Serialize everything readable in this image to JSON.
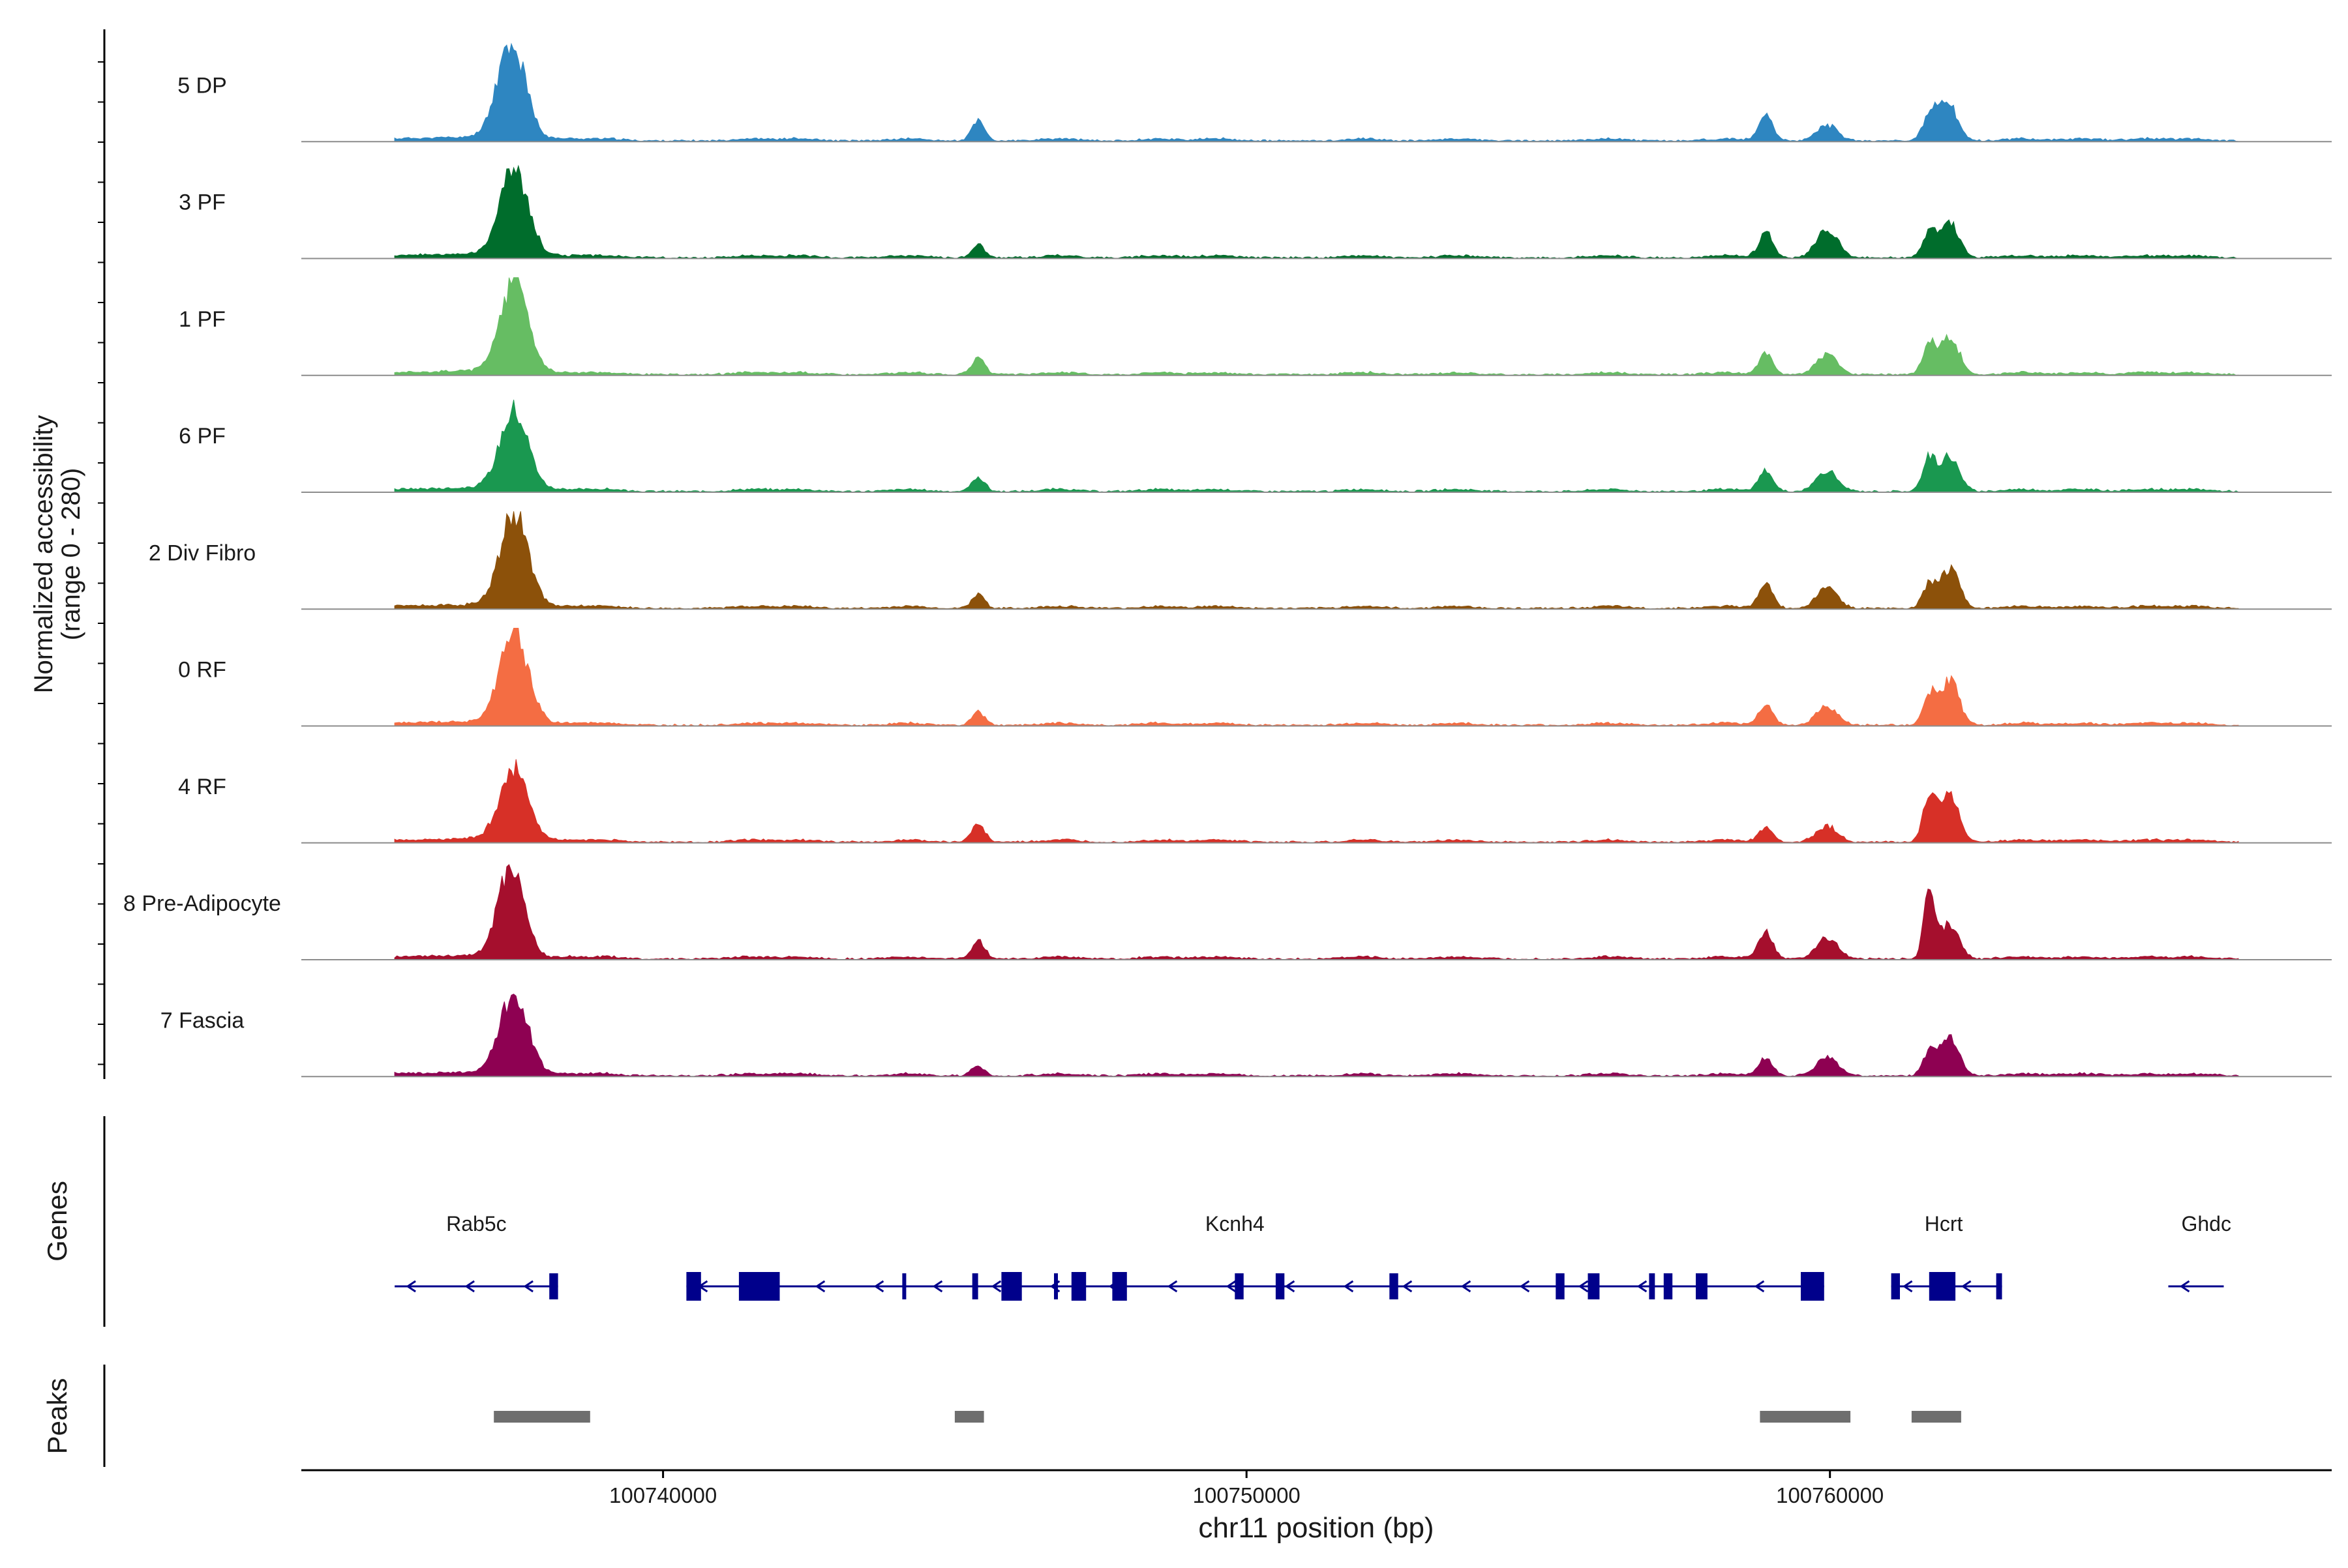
{
  "chart_data": {
    "type": "area",
    "title": "",
    "xlabel": "chr11 position (bp)",
    "ylabel": "Normalized accessibility",
    "ylabel_range": "(range 0 - 280)",
    "xlim": [
      100733800,
      100768600
    ],
    "ylim": [
      0,
      280
    ],
    "x_ticks": [
      {
        "value": 100740000,
        "label": "100740000"
      },
      {
        "value": 100750000,
        "label": "100750000"
      },
      {
        "value": 100760000,
        "label": "100760000"
      }
    ],
    "tracks": [
      {
        "name": "5 DP",
        "color": "#2e86c1",
        "peaks": [
          [
            100737400,
            280,
            240
          ],
          [
            100745400,
            55,
            110
          ],
          [
            100758900,
            70,
            120
          ],
          [
            100759950,
            45,
            180
          ],
          [
            100761700,
            65,
            110
          ],
          [
            100762000,
            125,
            160
          ]
        ]
      },
      {
        "name": "3 PF",
        "color": "#006d2c",
        "peaks": [
          [
            100737450,
            255,
            240
          ],
          [
            100745400,
            35,
            110
          ],
          [
            100758900,
            70,
            120
          ],
          [
            100759950,
            85,
            180
          ],
          [
            100761700,
            70,
            110
          ],
          [
            100762050,
            100,
            160
          ]
        ]
      },
      {
        "name": "1 PF",
        "color": "#66bd63",
        "peaks": [
          [
            100737450,
            265,
            240
          ],
          [
            100745400,
            50,
            110
          ],
          [
            100758900,
            60,
            120
          ],
          [
            100759950,
            55,
            180
          ],
          [
            100761700,
            80,
            110
          ],
          [
            100762050,
            110,
            160
          ]
        ]
      },
      {
        "name": "6 PF",
        "color": "#1a9850",
        "peaks": [
          [
            100737450,
            230,
            240
          ],
          [
            100745400,
            40,
            110
          ],
          [
            100758900,
            60,
            120
          ],
          [
            100759950,
            60,
            180
          ],
          [
            100761700,
            95,
            110
          ],
          [
            100762050,
            100,
            160
          ]
        ]
      },
      {
        "name": "2 Div Fibro",
        "color": "#8c510a",
        "peaks": [
          [
            100737450,
            270,
            240
          ],
          [
            100745400,
            40,
            110
          ],
          [
            100758900,
            75,
            120
          ],
          [
            100759950,
            60,
            180
          ],
          [
            100761700,
            65,
            110
          ],
          [
            100762050,
            115,
            160
          ]
        ]
      },
      {
        "name": "0 RF",
        "color": "#f46d43",
        "peaks": [
          [
            100737450,
            265,
            240
          ],
          [
            100745400,
            40,
            110
          ],
          [
            100758900,
            60,
            120
          ],
          [
            100759950,
            55,
            180
          ],
          [
            100761700,
            85,
            110
          ],
          [
            100762050,
            130,
            160
          ]
        ]
      },
      {
        "name": "4 RF",
        "color": "#d73027",
        "peaks": [
          [
            100737450,
            215,
            240
          ],
          [
            100745400,
            55,
            110
          ],
          [
            100758900,
            40,
            120
          ],
          [
            100759950,
            45,
            180
          ],
          [
            100761700,
            120,
            110
          ],
          [
            100762050,
            130,
            160
          ]
        ]
      },
      {
        "name": "8 Pre-Adipocyte",
        "color": "#a50f2d",
        "peaks": [
          [
            100737400,
            270,
            220
          ],
          [
            100745400,
            55,
            110
          ],
          [
            100758900,
            80,
            120
          ],
          [
            100759950,
            60,
            180
          ],
          [
            100761700,
            210,
            90
          ],
          [
            100762050,
            100,
            160
          ]
        ]
      },
      {
        "name": "7 Fascia",
        "color": "#8e0152",
        "peaks": [
          [
            100737450,
            230,
            240
          ],
          [
            100745400,
            30,
            110
          ],
          [
            100758900,
            50,
            120
          ],
          [
            100759950,
            55,
            180
          ],
          [
            100761700,
            65,
            110
          ],
          [
            100762050,
            110,
            160
          ]
        ]
      }
    ],
    "genes_label": "Genes",
    "genes": [
      {
        "name": "Rab5c",
        "label_x": 100736800,
        "start": 100735400,
        "end": 100738200,
        "strand": "-",
        "exons": [
          [
            100738050,
            100738200
          ]
        ]
      },
      {
        "name": "Kcnh4",
        "label_x": 100749800,
        "start": 100740400,
        "end": 100759900,
        "strand": "-",
        "exons": [
          [
            100740400,
            100740650
          ],
          [
            100741300,
            100742000
          ],
          [
            100744100,
            100744150
          ],
          [
            100745300,
            100745400
          ],
          [
            100745800,
            100746150
          ],
          [
            100746700,
            100746720
          ],
          [
            100747000,
            100747250
          ],
          [
            100747700,
            100747950
          ],
          [
            100749800,
            100749950
          ],
          [
            100750500,
            100750650
          ],
          [
            100752450,
            100752600
          ],
          [
            100755300,
            100755450
          ],
          [
            100755850,
            100756050
          ],
          [
            100756900,
            100757000
          ],
          [
            100757150,
            100757300
          ],
          [
            100757700,
            100757900
          ],
          [
            100759500,
            100759900
          ]
        ]
      },
      {
        "name": "Hcrt",
        "label_x": 100761950,
        "start": 100761050,
        "end": 100762950,
        "strand": "-",
        "exons": [
          [
            100761050,
            100761200
          ],
          [
            100761700,
            100762150
          ],
          [
            100762850,
            100762950
          ]
        ]
      },
      {
        "name": "Ghdc",
        "label_x": 100766450,
        "start": 100765800,
        "end": 100766750,
        "strand": "-",
        "exons": []
      }
    ],
    "peaks_label": "Peaks",
    "peak_regions": [
      [
        100737100,
        100738750
      ],
      [
        100745000,
        100745500
      ],
      [
        100758800,
        100760350
      ],
      [
        100761400,
        100762250
      ]
    ]
  }
}
